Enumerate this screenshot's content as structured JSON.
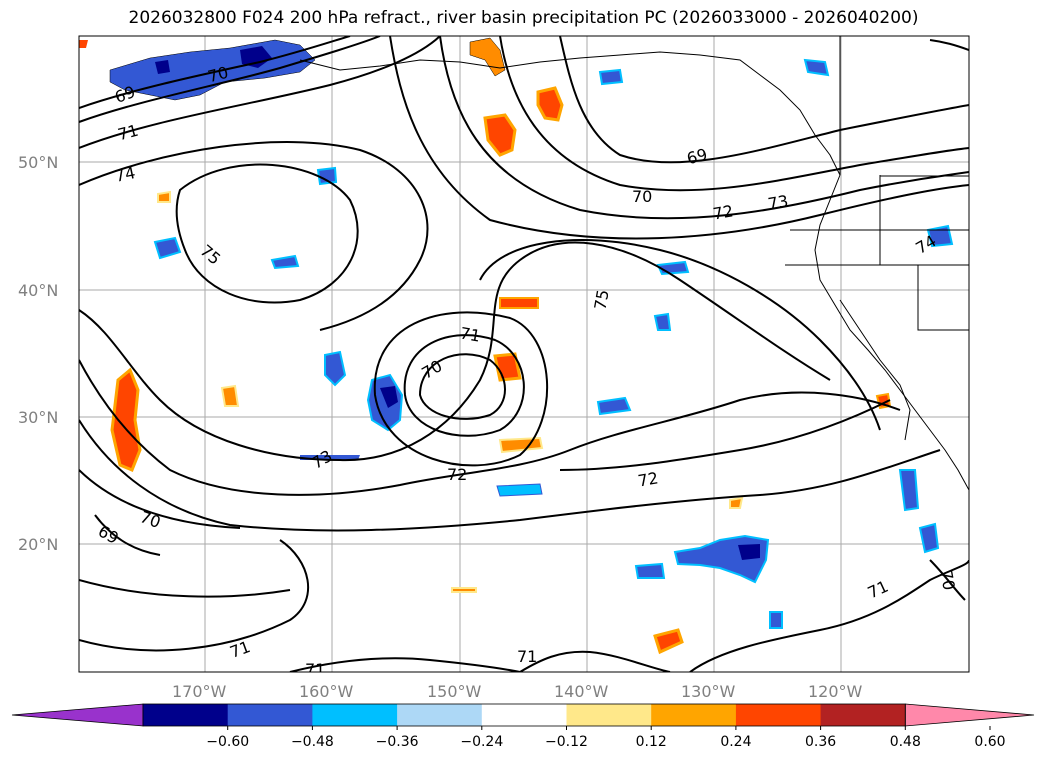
{
  "title": "2026032800 F024 200 hPa refract., river basin precipitation PC (2026033000 - 2026040200)",
  "latitude_labels": [
    "50°N",
    "40°N",
    "30°N",
    "20°N"
  ],
  "longitude_labels": [
    "170°W",
    "160°W",
    "150°W",
    "140°W",
    "130°W",
    "120°W"
  ],
  "contour_labels": [
    "69",
    "70",
    "71",
    "74",
    "75",
    "70",
    "71",
    "73",
    "72",
    "72",
    "69",
    "70",
    "72",
    "73",
    "75",
    "70",
    "69",
    "71",
    "71",
    "71",
    "71",
    "70",
    "74"
  ],
  "colorbar": {
    "ticks": [
      "−0.60",
      "−0.48",
      "−0.36",
      "−0.24",
      "−0.12",
      "0.12",
      "0.24",
      "0.36",
      "0.48",
      "0.60"
    ],
    "colors": [
      "#9932cc",
      "#00008b",
      "#3358d4",
      "#00bfff",
      "#add8f6",
      "#ffffff",
      "#ffe88a",
      "#ffa500",
      "#ff4500",
      "#b22222",
      "#ff88aa"
    ]
  },
  "colors": {
    "contour": "#000000",
    "grid": "#aaaaaa",
    "coast": "#000000"
  }
}
